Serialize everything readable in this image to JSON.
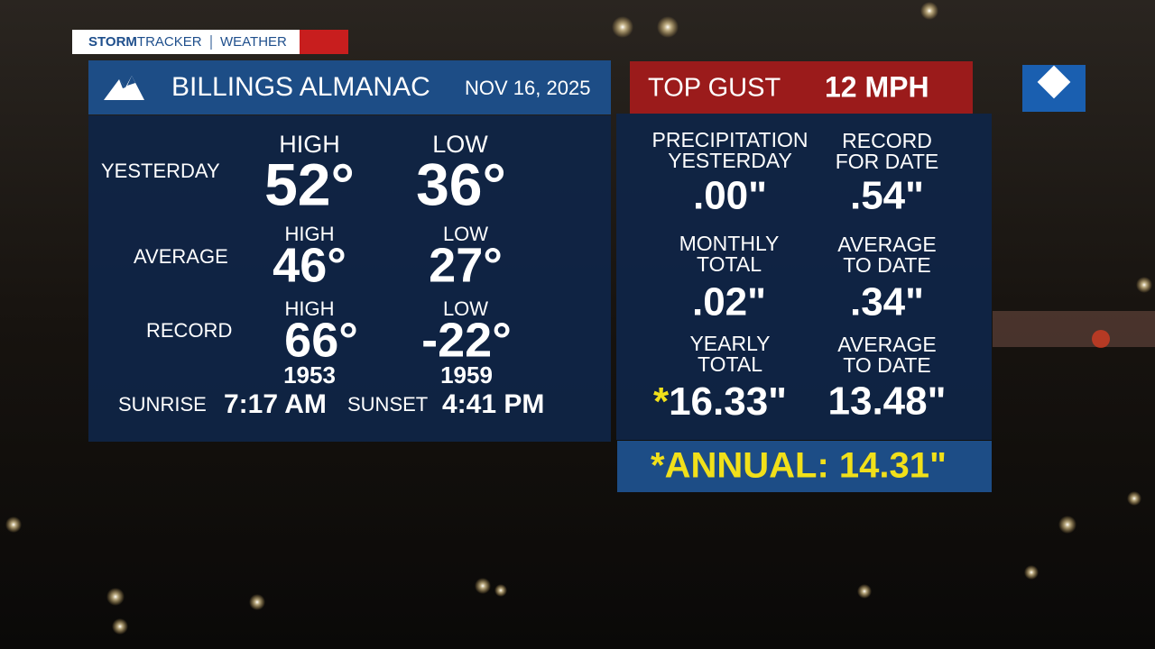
{
  "brand": {
    "storm": "STORM",
    "tracker": "TRACKER",
    "weather": "WEATHER"
  },
  "header": {
    "title": "BILLINGS ALMANAC",
    "date": "NOV 16, 2025"
  },
  "gust": {
    "label": "TOP GUST",
    "value": "12 MPH"
  },
  "temperatures": {
    "yesterday": {
      "label": "YESTERDAY",
      "high_label": "HIGH",
      "low_label": "LOW",
      "high": "52°",
      "low": "36°"
    },
    "average": {
      "label": "AVERAGE",
      "high_label": "HIGH",
      "low_label": "LOW",
      "high": "46°",
      "low": "27°"
    },
    "record": {
      "label": "RECORD",
      "high_label": "HIGH",
      "low_label": "LOW",
      "high": "66°",
      "low": "-22°",
      "high_year": "1953",
      "low_year": "1959"
    },
    "sun": {
      "sunrise_label": "SUNRISE",
      "sunrise": "7:17 AM",
      "sunset_label": "SUNSET",
      "sunset": "4:41 PM"
    }
  },
  "precipitation": {
    "yesterday": {
      "label": [
        "PRECIPITATION",
        "YESTERDAY"
      ],
      "value": ".00\""
    },
    "record": {
      "label": [
        "RECORD",
        "FOR DATE"
      ],
      "value": ".54\""
    },
    "monthly": {
      "label": [
        "MONTHLY",
        "TOTAL"
      ],
      "value": ".02\""
    },
    "monthly_average": {
      "label": [
        "AVERAGE",
        "TO DATE"
      ],
      "value": ".34\""
    },
    "yearly": {
      "label": [
        "YEARLY",
        "TOTAL"
      ],
      "mark": "*",
      "value": "16.33\""
    },
    "yearly_average": {
      "label": [
        "AVERAGE",
        "TO DATE"
      ],
      "value": "13.48\""
    },
    "annual": "*ANNUAL: 14.31\""
  }
}
